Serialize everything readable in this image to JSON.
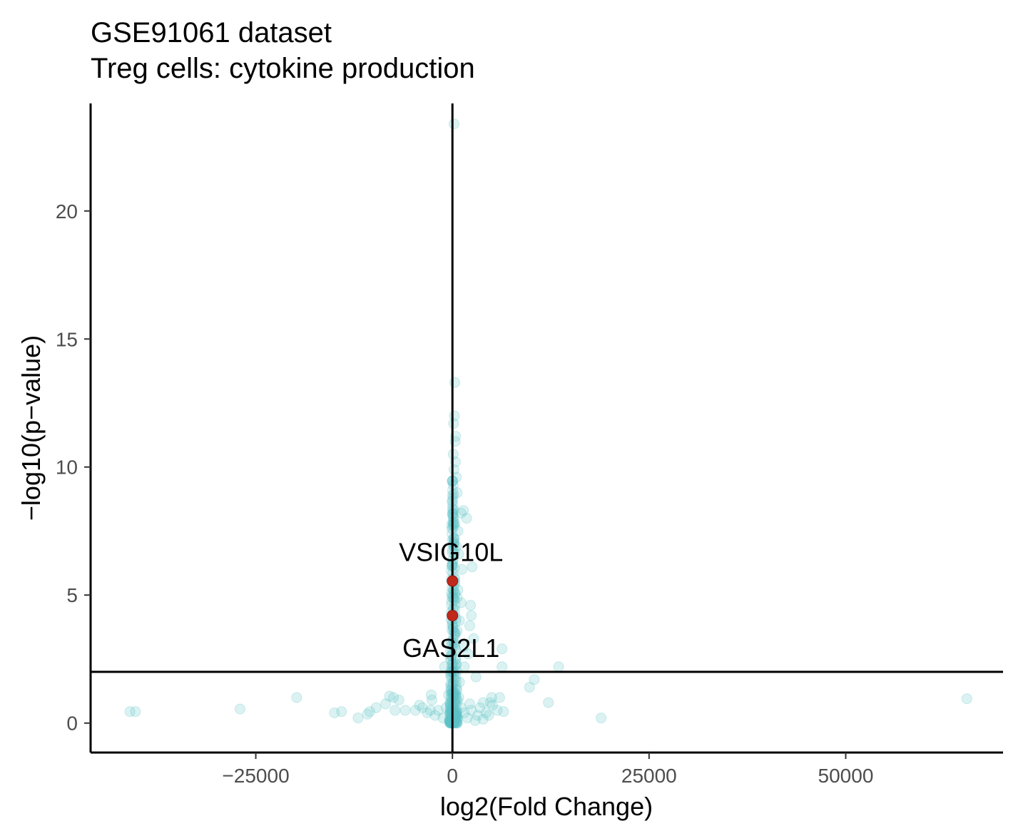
{
  "chart_data": {
    "type": "scatter",
    "title": "GSE91061 dataset",
    "subtitle": "Treg cells: cytokine production",
    "xlabel": "log2(Fold Change)",
    "ylabel": "−log10(p−value)",
    "xlim": [
      -46000,
      70000
    ],
    "ylim": [
      -1.15,
      24.2
    ],
    "xticks": [
      -25000,
      0,
      25000,
      50000
    ],
    "xtick_labels": [
      "−25000",
      "0",
      "25000",
      "50000"
    ],
    "yticks": [
      0,
      5,
      10,
      15,
      20
    ],
    "ytick_labels": [
      "0",
      "5",
      "10",
      "15",
      "20"
    ],
    "threshold_y": 2,
    "vline_x": 0,
    "grid": false,
    "colors": {
      "background_points": "#5fc3c6",
      "highlight_points": "#c0281b",
      "axis": "#000000"
    },
    "series": [
      {
        "points": [
          [
            200,
            23.4
          ],
          [
            300,
            13.3
          ],
          [
            250,
            12.0
          ],
          [
            150,
            11.7
          ],
          [
            400,
            11.2
          ],
          [
            350,
            11.0
          ],
          [
            100,
            10.5
          ],
          [
            380,
            10.2
          ],
          [
            200,
            9.9
          ],
          [
            500,
            9.6
          ],
          [
            100,
            9.3
          ],
          [
            600,
            9.0
          ],
          [
            1400,
            8.3
          ],
          [
            1800,
            8.0
          ],
          [
            1100,
            8.2
          ],
          [
            300,
            7.8
          ],
          [
            700,
            7.5
          ],
          [
            200,
            7.2
          ],
          [
            500,
            6.9
          ],
          [
            800,
            6.6
          ],
          [
            2500,
            6.1
          ],
          [
            1200,
            6.0
          ],
          [
            300,
            5.5
          ],
          [
            700,
            5.2
          ],
          [
            600,
            4.9
          ],
          [
            1100,
            4.7
          ],
          [
            2300,
            4.6
          ],
          [
            2400,
            4.2
          ],
          [
            900,
            4.0
          ],
          [
            2200,
            3.8
          ],
          [
            600,
            3.6
          ],
          [
            2700,
            3.3
          ],
          [
            1500,
            3.0
          ],
          [
            6300,
            2.9
          ],
          [
            2000,
            2.7
          ],
          [
            400,
            2.5
          ],
          [
            -1000,
            2.2
          ],
          [
            500,
            2.3
          ],
          [
            1500,
            2.2
          ],
          [
            6300,
            2.2
          ],
          [
            13500,
            2.2
          ],
          [
            3000,
            1.8
          ],
          [
            10400,
            1.7
          ],
          [
            9800,
            1.4
          ],
          [
            -200,
            1.9
          ],
          [
            900,
            1.6
          ],
          [
            200,
            1.2
          ],
          [
            -500,
            1.1
          ],
          [
            800,
            1.0
          ],
          [
            -2700,
            1.1
          ],
          [
            -2600,
            0.9
          ],
          [
            5000,
            1.0
          ],
          [
            6000,
            1.0
          ],
          [
            4800,
            0.8
          ],
          [
            65400,
            0.95
          ],
          [
            12200,
            0.8
          ],
          [
            -19800,
            1.0
          ],
          [
            -8000,
            1.05
          ],
          [
            -7500,
            1.0
          ],
          [
            -6800,
            0.9
          ],
          [
            -8500,
            0.75
          ],
          [
            -9700,
            0.6
          ],
          [
            -10500,
            0.45
          ],
          [
            -10800,
            0.35
          ],
          [
            -12000,
            0.2
          ],
          [
            -14100,
            0.45
          ],
          [
            -15000,
            0.4
          ],
          [
            -27000,
            0.55
          ],
          [
            -41000,
            0.45
          ],
          [
            -40300,
            0.45
          ],
          [
            18900,
            0.2
          ],
          [
            -7300,
            0.5
          ],
          [
            -6000,
            0.5
          ],
          [
            -4700,
            0.5
          ],
          [
            -4200,
            0.7
          ],
          [
            -3800,
            0.6
          ],
          [
            -3200,
            0.4
          ],
          [
            -2800,
            0.5
          ],
          [
            -2200,
            0.3
          ],
          [
            -1800,
            0.5
          ],
          [
            -1200,
            0.2
          ],
          [
            -800,
            0.6
          ],
          [
            -400,
            0.1
          ],
          [
            -300,
            0.4
          ],
          [
            100,
            0.3
          ],
          [
            400,
            0.8
          ],
          [
            700,
            0.2
          ],
          [
            1100,
            0.6
          ],
          [
            1500,
            0.4
          ],
          [
            1900,
            0.2
          ],
          [
            2400,
            0.5
          ],
          [
            2900,
            0.1
          ],
          [
            3200,
            0.3
          ],
          [
            3500,
            0.6
          ],
          [
            3900,
            0.15
          ],
          [
            4300,
            0.4
          ],
          [
            5100,
            0.7
          ],
          [
            5700,
            0.5
          ],
          [
            6500,
            0.45
          ],
          [
            3900,
            0.8
          ],
          [
            4600,
            0.3
          ],
          [
            2200,
            0.75
          ]
        ]
      },
      {
        "points": [
          [
            0,
            5.55
          ],
          [
            0,
            4.2
          ]
        ]
      }
    ],
    "annotations": [
      {
        "text": "VSIG10L",
        "x": 0,
        "y": 5.55
      },
      {
        "text": "GAS2L1",
        "x": 0,
        "y": 4.2
      }
    ]
  }
}
